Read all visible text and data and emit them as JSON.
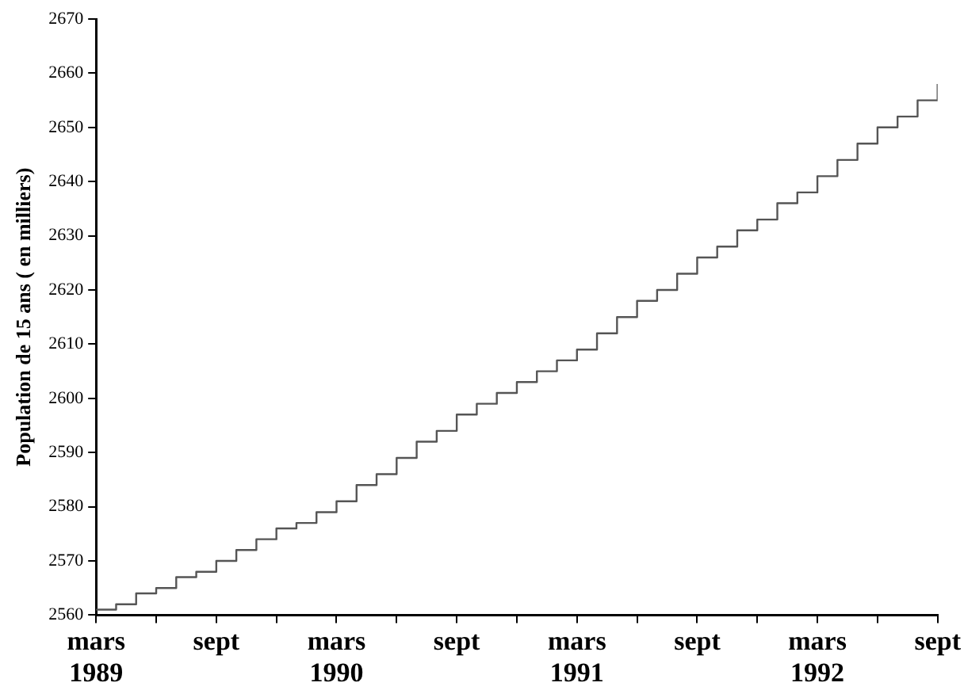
{
  "chart_data": {
    "type": "step",
    "ylabel": "Population de 15 ans ( en milliers)",
    "x": [
      "1989-03",
      "1989-04",
      "1989-05",
      "1989-06",
      "1989-07",
      "1989-08",
      "1989-09",
      "1989-10",
      "1989-11",
      "1989-12",
      "1990-01",
      "1990-02",
      "1990-03",
      "1990-04",
      "1990-05",
      "1990-06",
      "1990-07",
      "1990-08",
      "1990-09",
      "1990-10",
      "1990-11",
      "1990-12",
      "1991-01",
      "1991-02",
      "1991-03",
      "1991-04",
      "1991-05",
      "1991-06",
      "1991-07",
      "1991-08",
      "1991-09",
      "1991-10",
      "1991-11",
      "1991-12",
      "1992-01",
      "1992-02",
      "1992-03",
      "1992-04",
      "1992-05",
      "1992-06",
      "1992-07",
      "1992-08",
      "1992-09"
    ],
    "series": [
      {
        "color": "#555555",
        "values": [
          2561,
          2562,
          2564,
          2565,
          2567,
          2568,
          2570,
          2572,
          2574,
          2576,
          2577,
          2579,
          2581,
          2584,
          2586,
          2589,
          2592,
          2594,
          2597,
          2599,
          2601,
          2603,
          2605,
          2607,
          2609,
          2612,
          2615,
          2618,
          2620,
          2623,
          2626,
          2628,
          2631,
          2633,
          2636,
          2638,
          2641,
          2644,
          2647,
          2650,
          2652,
          2655,
          2658
        ]
      }
    ],
    "xlim": [
      "1989-03",
      "1992-09"
    ],
    "xticks": [
      {
        "value": "1989-03",
        "label": "mars 1989"
      },
      {
        "value": "1989-06",
        "label": null
      },
      {
        "value": "1989-09",
        "label": "sept"
      },
      {
        "value": "1989-12",
        "label": null
      },
      {
        "value": "1990-03",
        "label": "mars 1990"
      },
      {
        "value": "1990-06",
        "label": null
      },
      {
        "value": "1990-09",
        "label": "sept"
      },
      {
        "value": "1990-12",
        "label": null
      },
      {
        "value": "1991-03",
        "label": "mars 1991"
      },
      {
        "value": "1991-06",
        "label": null
      },
      {
        "value": "1991-09",
        "label": "sept"
      },
      {
        "value": "1991-12",
        "label": null
      },
      {
        "value": "1992-03",
        "label": "mars 1992"
      },
      {
        "value": "1992-06",
        "label": null
      },
      {
        "value": "1992-09",
        "label": "sept"
      }
    ],
    "ylim": [
      2560,
      2670
    ],
    "yticks": [
      2560,
      2570,
      2580,
      2590,
      2600,
      2610,
      2620,
      2630,
      2640,
      2650,
      2660,
      2670
    ],
    "grid": false,
    "legend": false,
    "marker": "none",
    "line_style": "solid"
  }
}
